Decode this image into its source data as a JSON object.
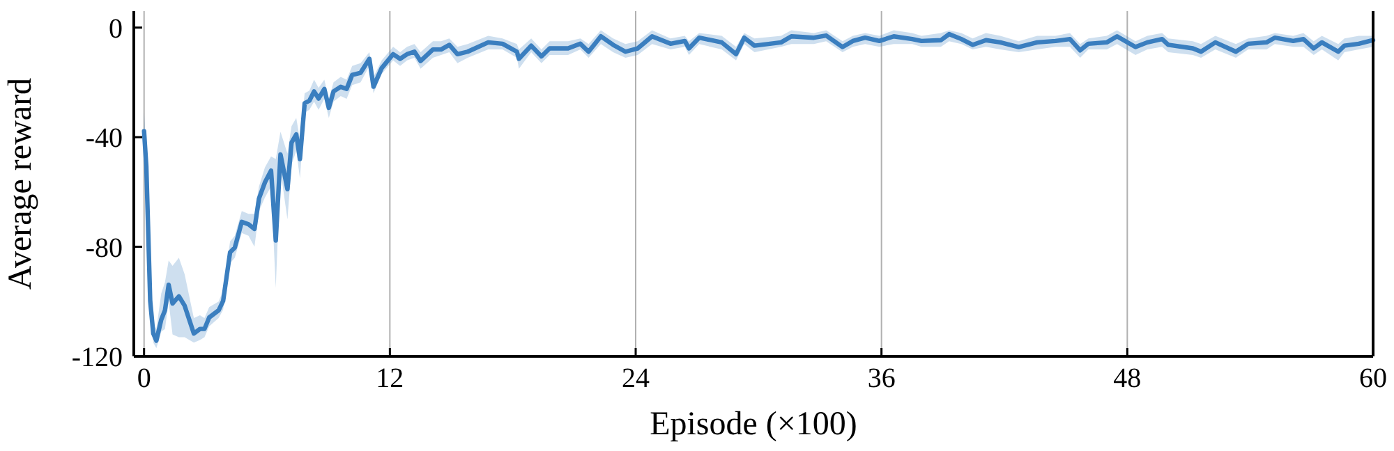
{
  "chart_data": {
    "type": "line",
    "xlabel": "Episode (×100)",
    "ylabel": "Average reward",
    "xlim": [
      -0.5,
      60
    ],
    "ylim": [
      -120,
      6
    ],
    "xticks": [
      0,
      12,
      24,
      36,
      48,
      60
    ],
    "yticks": [
      -120,
      -80,
      -40,
      0
    ],
    "grid": "x",
    "marker": "none",
    "line_style": "solid",
    "series": [
      {
        "color": "#3a7ebf",
        "x": [
          0,
          0.11,
          0.3,
          0.45,
          0.6,
          0.84,
          1.02,
          1.2,
          1.39,
          1.7,
          1.98,
          2.43,
          2.73,
          2.95,
          3.18,
          3.64,
          3.86,
          4.2,
          4.43,
          4.77,
          5.1,
          5.39,
          5.61,
          5.9,
          6.2,
          6.43,
          6.66,
          7.0,
          7.2,
          7.43,
          7.61,
          7.84,
          8.07,
          8.3,
          8.52,
          8.8,
          9.02,
          9.25,
          9.6,
          9.89,
          10.16,
          10.57,
          11.0,
          11.2,
          11.6,
          12.16,
          12.5,
          12.84,
          13.2,
          13.5,
          14.1,
          14.5,
          14.9,
          15.3,
          15.8,
          16.8,
          17.5,
          18.2,
          18.3,
          18.9,
          19.4,
          19.8,
          20.7,
          21.3,
          21.7,
          22.3,
          22.9,
          23.5,
          24.1,
          24.8,
          25.7,
          26.4,
          26.6,
          27.1,
          28.2,
          28.9,
          29.3,
          29.8,
          31.1,
          31.6,
          32.7,
          33.3,
          34.1,
          34.6,
          35.2,
          35.9,
          36.6,
          37.5,
          37.95,
          38.9,
          39.3,
          39.9,
          40.45,
          41.1,
          41.8,
          42.7,
          43.6,
          44.5,
          45.2,
          45.7,
          46.1,
          47.0,
          47.5,
          48.4,
          48.98,
          49.7,
          50.0,
          51.2,
          51.6,
          52.3,
          53.3,
          53.9,
          54.8,
          55.2,
          56.1,
          56.6,
          57.1,
          57.5,
          58.3,
          58.6,
          59.3,
          60.0
        ],
        "values": [
          -37.8,
          -50.5,
          -99.8,
          -111.7,
          -114.3,
          -106.6,
          -103.2,
          -93.9,
          -100.7,
          -98.1,
          -101.5,
          -111.7,
          -110,
          -110,
          -105.8,
          -103.2,
          -99.8,
          -82,
          -80.3,
          -70.9,
          -71.8,
          -73.5,
          -62.4,
          -56.5,
          -52.2,
          -77.7,
          -46.3,
          -59,
          -42,
          -39,
          -48,
          -27.6,
          -26.7,
          -23.3,
          -25.9,
          -22.4,
          -29.3,
          -23.3,
          -21.6,
          -22.4,
          -17.3,
          -16.5,
          -11.4,
          -21.6,
          -14.8,
          -9.7,
          -11.4,
          -9.7,
          -8.8,
          -12.2,
          -8,
          -8,
          -6.3,
          -9.7,
          -8.8,
          -5.4,
          -5.9,
          -8.8,
          -11.4,
          -6.6,
          -10.5,
          -7.6,
          -7.6,
          -5.9,
          -8.8,
          -3.2,
          -6.3,
          -8.8,
          -7.6,
          -3.2,
          -5.9,
          -4.9,
          -7.6,
          -3.7,
          -5.4,
          -9.7,
          -3.7,
          -6.6,
          -5.4,
          -3.2,
          -3.7,
          -2.9,
          -7.1,
          -4.9,
          -3.7,
          -4.9,
          -3.2,
          -4.2,
          -4.9,
          -4.6,
          -2.4,
          -4.2,
          -6.3,
          -4.6,
          -5.4,
          -7.1,
          -5.4,
          -4.9,
          -4.2,
          -8.3,
          -5.9,
          -5.4,
          -3.2,
          -7.1,
          -5.4,
          -4.2,
          -6.3,
          -7.6,
          -8.8,
          -5.4,
          -8.8,
          -5.9,
          -5.4,
          -3.7,
          -4.9,
          -4.2,
          -7.6,
          -5.4,
          -8.8,
          -6.6,
          -5.9,
          -4.6
        ],
        "lower": [
          -44,
          -56,
          -104,
          -115,
          -117,
          -111,
          -110,
          -100,
          -112,
          -113,
          -113,
          -115,
          -114,
          -113,
          -109,
          -106,
          -103,
          -86,
          -84,
          -75,
          -76,
          -80,
          -67,
          -62,
          -58,
          -95,
          -52,
          -70,
          -50,
          -45,
          -55,
          -31,
          -30,
          -27,
          -30,
          -26,
          -33,
          -27,
          -25,
          -26,
          -21,
          -20,
          -14,
          -24,
          -17,
          -12,
          -14,
          -12,
          -11,
          -15,
          -11,
          -10,
          -9,
          -13,
          -11,
          -8,
          -8,
          -11,
          -15,
          -9,
          -13,
          -10,
          -10,
          -8,
          -11,
          -6,
          -9,
          -11,
          -10,
          -6,
          -8,
          -7,
          -10,
          -6,
          -8,
          -12,
          -6,
          -9,
          -7,
          -6,
          -6,
          -5,
          -9,
          -7,
          -6,
          -7,
          -6,
          -6,
          -7,
          -7,
          -5,
          -6,
          -8,
          -7,
          -8,
          -9,
          -8,
          -7,
          -7,
          -11,
          -8,
          -8,
          -6,
          -10,
          -8,
          -7,
          -9,
          -10,
          -11,
          -8,
          -11,
          -8,
          -8,
          -6,
          -7,
          -7,
          -10,
          -8,
          -12,
          -9,
          -8,
          -7
        ],
        "upper": [
          -31,
          -44,
          -94,
          -108,
          -110,
          -97,
          -93,
          -85,
          -87,
          -84,
          -90,
          -106,
          -105,
          -106,
          -102,
          -100,
          -96,
          -78,
          -76,
          -67,
          -68,
          -68,
          -58,
          -51,
          -47,
          -48,
          -38,
          -46,
          -36,
          -33,
          -41,
          -24,
          -23,
          -19,
          -22,
          -19,
          -26,
          -20,
          -18,
          -19,
          -14,
          -13,
          -9,
          -18,
          -12,
          -7,
          -9,
          -7,
          -6,
          -9,
          -5,
          -5,
          -4,
          -7,
          -6,
          -3,
          -4,
          -6,
          -8,
          -4,
          -8,
          -5,
          -5,
          -4,
          -6,
          -1,
          -4,
          -6,
          -5,
          -1,
          -4,
          -3,
          -5,
          -2,
          -3,
          -7,
          -2,
          -4,
          -3,
          -1,
          -2,
          -1,
          -5,
          -3,
          -2,
          -3,
          -1,
          -2,
          -3,
          -2,
          -1,
          -2,
          -4,
          -2,
          -3,
          -5,
          -3,
          -3,
          -2,
          -6,
          -4,
          -3,
          -1,
          -5,
          -3,
          -2,
          -4,
          -5,
          -6,
          -3,
          -6,
          -4,
          -3,
          -2,
          -3,
          -2,
          -5,
          -3,
          -6,
          -4,
          -3,
          -3
        ]
      }
    ]
  }
}
